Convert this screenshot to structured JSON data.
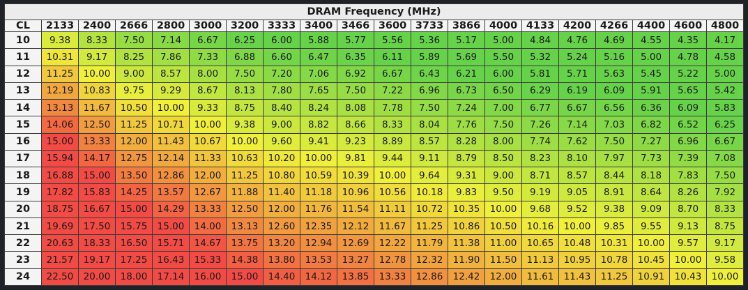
{
  "chart_data": {
    "type": "table",
    "title": "DRAM Frequency (MHz)",
    "corner_label": "CL",
    "frequencies": [
      "2133",
      "2400",
      "2666",
      "2800",
      "3000",
      "3200",
      "3333",
      "3400",
      "3466",
      "3600",
      "3733",
      "3866",
      "4000",
      "4133",
      "4200",
      "4266",
      "4400",
      "4600",
      "4800"
    ],
    "cl_values": [
      "10",
      "11",
      "12",
      "13",
      "14",
      "15",
      "16",
      "17",
      "18",
      "19",
      "20",
      "21",
      "22",
      "23",
      "24"
    ],
    "rows": [
      [
        "9.38",
        "8.33",
        "7.50",
        "7.14",
        "6.67",
        "6.25",
        "6.00",
        "5.88",
        "5.77",
        "5.56",
        "5.36",
        "5.17",
        "5.00",
        "4.84",
        "4.76",
        "4.69",
        "4.55",
        "4.35",
        "4.17"
      ],
      [
        "10.31",
        "9.17",
        "8.25",
        "7.86",
        "7.33",
        "6.88",
        "6.60",
        "6.47",
        "6.35",
        "6.11",
        "5.89",
        "5.69",
        "5.50",
        "5.32",
        "5.24",
        "5.16",
        "5.00",
        "4.78",
        "4.58"
      ],
      [
        "11.25",
        "10.00",
        "9.00",
        "8.57",
        "8.00",
        "7.50",
        "7.20",
        "7.06",
        "6.92",
        "6.67",
        "6.43",
        "6.21",
        "6.00",
        "5.81",
        "5.71",
        "5.63",
        "5.45",
        "5.22",
        "5.00"
      ],
      [
        "12.19",
        "10.83",
        "9.75",
        "9.29",
        "8.67",
        "8.13",
        "7.80",
        "7.65",
        "7.50",
        "7.22",
        "6.96",
        "6.73",
        "6.50",
        "6.29",
        "6.19",
        "6.09",
        "5.91",
        "5.65",
        "5.42"
      ],
      [
        "13.13",
        "11.67",
        "10.50",
        "10.00",
        "9.33",
        "8.75",
        "8.40",
        "8.24",
        "8.08",
        "7.78",
        "7.50",
        "7.24",
        "7.00",
        "6.77",
        "6.67",
        "6.56",
        "6.36",
        "6.09",
        "5.83"
      ],
      [
        "14.06",
        "12.50",
        "11.25",
        "10.71",
        "10.00",
        "9.38",
        "9.00",
        "8.82",
        "8.66",
        "8.33",
        "8.04",
        "7.76",
        "7.50",
        "7.26",
        "7.14",
        "7.03",
        "6.82",
        "6.52",
        "6.25"
      ],
      [
        "15.00",
        "13.33",
        "12.00",
        "11.43",
        "10.67",
        "10.00",
        "9.60",
        "9.41",
        "9.23",
        "8.89",
        "8.57",
        "8.28",
        "8.00",
        "7.74",
        "7.62",
        "7.50",
        "7.27",
        "6.96",
        "6.67"
      ],
      [
        "15.94",
        "14.17",
        "12.75",
        "12.14",
        "11.33",
        "10.63",
        "10.20",
        "10.00",
        "9.81",
        "9.44",
        "9.11",
        "8.79",
        "8.50",
        "8.23",
        "8.10",
        "7.97",
        "7.73",
        "7.39",
        "7.08"
      ],
      [
        "16.88",
        "15.00",
        "13.50",
        "12.86",
        "12.00",
        "11.25",
        "10.80",
        "10.59",
        "10.39",
        "10.00",
        "9.64",
        "9.31",
        "9.00",
        "8.71",
        "8.57",
        "8.44",
        "8.18",
        "7.83",
        "7.50"
      ],
      [
        "17.82",
        "15.83",
        "14.25",
        "13.57",
        "12.67",
        "11.88",
        "11.40",
        "11.18",
        "10.96",
        "10.56",
        "10.18",
        "9.83",
        "9.50",
        "9.19",
        "9.05",
        "8.91",
        "8.64",
        "8.26",
        "7.92"
      ],
      [
        "18.75",
        "16.67",
        "15.00",
        "14.29",
        "13.33",
        "12.50",
        "12.00",
        "11.76",
        "11.54",
        "11.11",
        "10.72",
        "10.35",
        "10.00",
        "9.68",
        "9.52",
        "9.38",
        "9.09",
        "8.70",
        "8.33"
      ],
      [
        "19.69",
        "17.50",
        "15.75",
        "15.00",
        "14.00",
        "13.13",
        "12.60",
        "12.35",
        "12.12",
        "11.67",
        "11.25",
        "10.86",
        "10.50",
        "10.16",
        "10.00",
        "9.85",
        "9.55",
        "9.13",
        "8.75"
      ],
      [
        "20.63",
        "18.33",
        "16.50",
        "15.71",
        "14.67",
        "13.75",
        "13.20",
        "12.94",
        "12.69",
        "12.22",
        "11.79",
        "11.38",
        "11.00",
        "10.65",
        "10.48",
        "10.31",
        "10.00",
        "9.57",
        "9.17"
      ],
      [
        "21.57",
        "19.17",
        "17.25",
        "16.43",
        "15.33",
        "14.38",
        "13.80",
        "13.53",
        "13.27",
        "12.78",
        "12.32",
        "11.90",
        "11.50",
        "11.13",
        "10.95",
        "10.78",
        "10.45",
        "10.00",
        "9.58"
      ],
      [
        "22.50",
        "20.00",
        "18.00",
        "17.14",
        "16.00",
        "15.00",
        "14.40",
        "14.12",
        "13.85",
        "13.33",
        "12.86",
        "12.42",
        "12.00",
        "11.61",
        "11.43",
        "11.25",
        "10.91",
        "10.43",
        "10.00"
      ]
    ],
    "color_scale": {
      "low": "#66d24a",
      "mid": "#f0f03a",
      "high": "#f24a44"
    }
  }
}
